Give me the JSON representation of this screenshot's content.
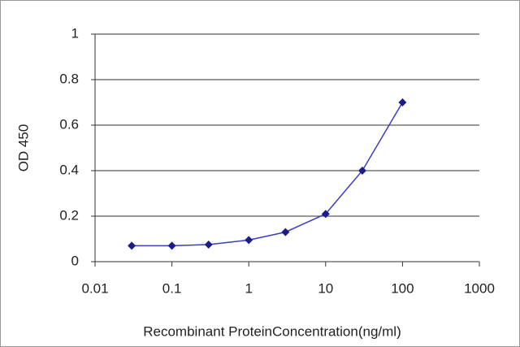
{
  "chart_data": {
    "type": "line",
    "xlabel": "Recombinant ProteinConcentration(ng/ml)",
    "ylabel": "OD 450",
    "xscale": "log",
    "x": [
      0.03,
      0.1,
      0.3,
      1,
      3,
      10,
      30,
      100
    ],
    "series": [
      {
        "color": "#3b3bc4",
        "marker_color": "#1c1c8c",
        "values": [
          0.07,
          0.07,
          0.075,
          0.095,
          0.13,
          0.21,
          0.4,
          0.7
        ]
      }
    ],
    "xlim": [
      0.01,
      1000
    ],
    "xticks": [
      0.01,
      0.1,
      1,
      10,
      100,
      1000
    ],
    "ylim": [
      0,
      1
    ],
    "yticks": [
      0,
      0.2,
      0.4,
      0.6,
      0.8,
      1
    ],
    "grid": true
  }
}
